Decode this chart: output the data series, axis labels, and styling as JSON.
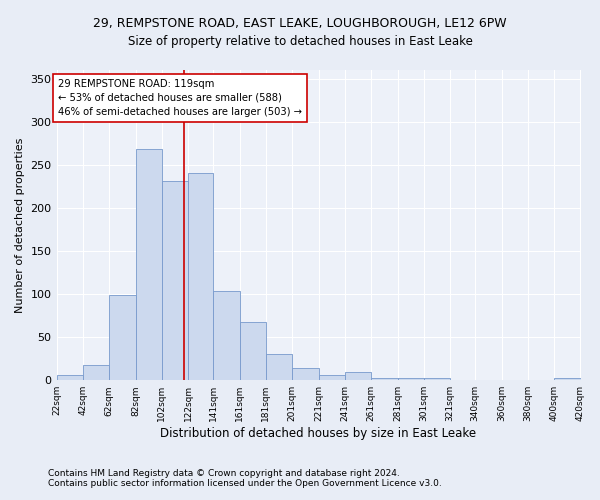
{
  "title1": "29, REMPSTONE ROAD, EAST LEAKE, LOUGHBOROUGH, LE12 6PW",
  "title2": "Size of property relative to detached houses in East Leake",
  "xlabel": "Distribution of detached houses by size in East Leake",
  "ylabel": "Number of detached properties",
  "footnote1": "Contains HM Land Registry data © Crown copyright and database right 2024.",
  "footnote2": "Contains public sector information licensed under the Open Government Licence v3.0.",
  "bar_color": "#ccd9ee",
  "bar_edge_color": "#7799cc",
  "bins": [
    22,
    42,
    62,
    82,
    102,
    122,
    141,
    161,
    181,
    201,
    221,
    241,
    261,
    281,
    301,
    321,
    340,
    360,
    380,
    400,
    420
  ],
  "counts": [
    6,
    18,
    99,
    268,
    231,
    241,
    104,
    67,
    30,
    14,
    6,
    10,
    2,
    3,
    2,
    0,
    0,
    0,
    0,
    2
  ],
  "property_size": 119,
  "vline_color": "#cc0000",
  "annotation_text": "29 REMPSTONE ROAD: 119sqm\n← 53% of detached houses are smaller (588)\n46% of semi-detached houses are larger (503) →",
  "annotation_box_color": "#ffffff",
  "annotation_box_edge": "#cc0000",
  "ylim": [
    0,
    360
  ],
  "yticks": [
    0,
    50,
    100,
    150,
    200,
    250,
    300,
    350
  ],
  "background_color": "#e8edf6",
  "plot_bg_color": "#edf1f9",
  "grid_color": "#ffffff",
  "title1_fontsize": 9,
  "title2_fontsize": 8.5,
  "xlabel_fontsize": 8.5,
  "ylabel_fontsize": 8,
  "xtick_fontsize": 6.5,
  "ytick_fontsize": 8,
  "footnote_fontsize": 6.5,
  "annot_fontsize": 7.2
}
